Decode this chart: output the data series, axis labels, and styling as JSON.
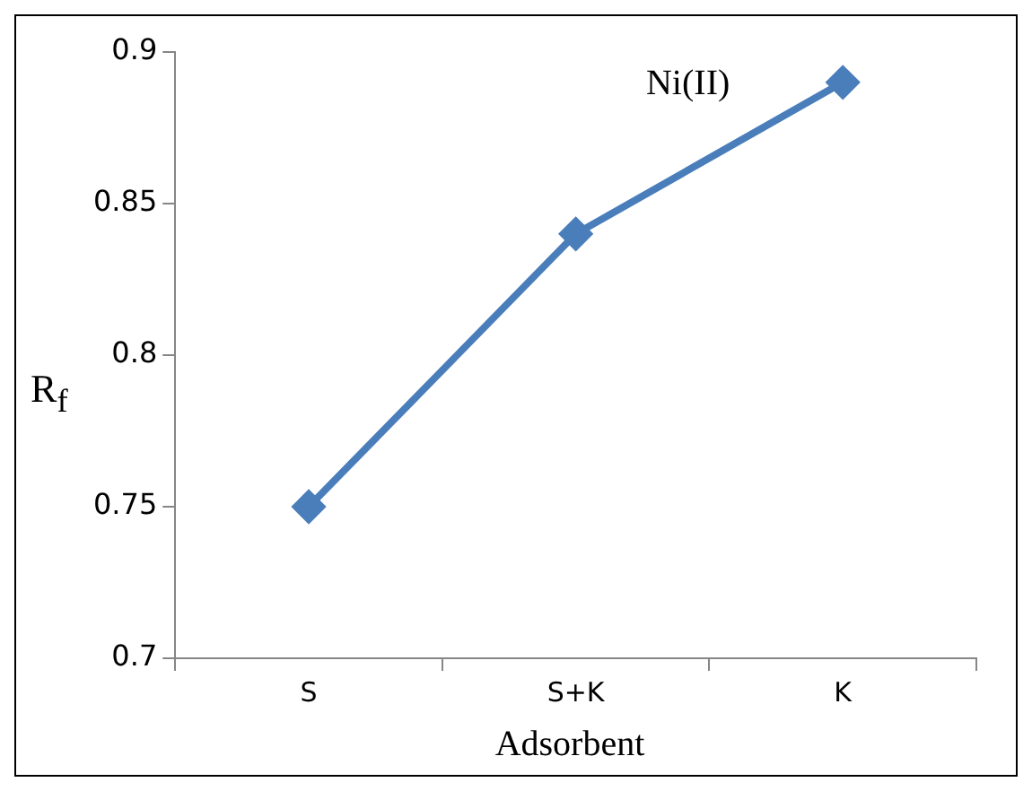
{
  "chart_data": {
    "type": "line",
    "title": "Ni(II)",
    "xlabel": "Adsorbent",
    "ylabel": "R$_{f}$",
    "categories": [
      "S",
      "S+K",
      "K"
    ],
    "series": [
      {
        "color": "#4a7ebb",
        "values": [
          0.75,
          0.84,
          0.89
        ]
      }
    ],
    "ylim": [
      0.7,
      0.9
    ],
    "yticks": [
      0.7,
      0.75,
      0.8,
      0.85,
      0.9
    ],
    "grid": false,
    "legend": false,
    "marker": "diamond",
    "line_style": "solid"
  }
}
